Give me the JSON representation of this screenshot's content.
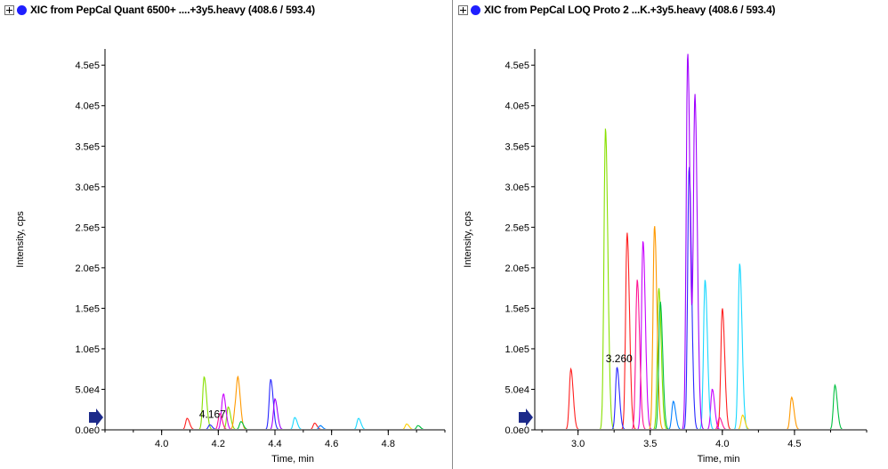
{
  "colors": {
    "series": [
      "#ff2020",
      "#88e000",
      "#2828ff",
      "#c800ff",
      "#ff9900",
      "#18d8ff",
      "#ff1493",
      "#00c040",
      "#ffd000",
      "#a000ff",
      "#0080ff"
    ],
    "marker": "#1c2a8a",
    "title_dot": "#1f1fff"
  },
  "panels": [
    {
      "title": "XIC from PepCal Quant 6500+ ....+3y5.heavy (408.6 / 593.4)",
      "expand_icon": "plus-box-icon",
      "dot_icon": "blue-circle-icon"
    },
    {
      "title": "XIC from PepCal LOQ Proto 2 ...K.+3y5.heavy (408.6 / 593.4)",
      "expand_icon": "plus-box-icon",
      "dot_icon": "blue-circle-icon"
    }
  ],
  "chart_data": [
    {
      "type": "line",
      "ylabel": "Intensity, cps",
      "xlabel": "Time, min",
      "xlim": [
        3.8,
        5.0
      ],
      "ylim": [
        0,
        470000
      ],
      "x_ticks": [
        4.0,
        4.2,
        4.4,
        4.6,
        4.8
      ],
      "x_tick_labels": [
        "4.0",
        "4.2",
        "4.4",
        "4.6",
        "4.8"
      ],
      "y_ticks": [
        0,
        50000,
        100000,
        150000,
        200000,
        250000,
        300000,
        350000,
        400000,
        450000
      ],
      "y_tick_labels": [
        "0.0e0",
        "5.0e4",
        "1.0e5",
        "1.5e5",
        "2.0e5",
        "2.5e5",
        "3.0e5",
        "3.5e5",
        "4.0e5",
        "4.5e5"
      ],
      "annotations": [
        {
          "text": "4.167",
          "x": 4.167,
          "y": 8000
        }
      ],
      "series": [
        {
          "peaks": [
            [
              4.09,
              14000
            ],
            [
              4.54,
              8000
            ]
          ]
        },
        {
          "peaks": [
            [
              4.15,
              65000
            ],
            [
              4.235,
              28000
            ]
          ]
        },
        {
          "peaks": [
            [
              4.17,
              6000
            ],
            [
              4.385,
              62000
            ]
          ]
        },
        {
          "peaks": [
            [
              4.215,
              25000
            ],
            [
              4.22,
              22000
            ]
          ]
        },
        {
          "peaks": [
            [
              4.26,
              25000
            ],
            [
              4.27,
              52000
            ]
          ]
        },
        {
          "peaks": [
            [
              4.47,
              15000
            ],
            [
              4.695,
              14000
            ]
          ]
        },
        {
          "peaks": [
            [
              4.205,
              20000
            ]
          ]
        },
        {
          "peaks": [
            [
              4.28,
              10000
            ],
            [
              4.905,
              5000
            ]
          ]
        },
        {
          "peaks": [
            [
              4.865,
              7000
            ]
          ]
        },
        {
          "peaks": [
            [
              4.4,
              38000
            ]
          ]
        },
        {
          "peaks": [
            [
              4.56,
              5000
            ]
          ]
        }
      ]
    },
    {
      "type": "line",
      "ylabel": "Intensity, cps",
      "xlabel": "Time, min",
      "xlim": [
        2.7,
        5.0
      ],
      "ylim": [
        0,
        470000
      ],
      "x_ticks": [
        3.0,
        3.5,
        4.0,
        4.5
      ],
      "x_tick_labels": [
        "3.0",
        "3.5",
        "4.0",
        "4.5"
      ],
      "y_ticks": [
        0,
        50000,
        100000,
        150000,
        200000,
        250000,
        300000,
        350000,
        400000,
        450000
      ],
      "y_tick_labels": [
        "0.0e0",
        "5.0e4",
        "1.0e5",
        "1.5e5",
        "2.0e5",
        "2.5e5",
        "3.0e5",
        "3.5e5",
        "4.0e5",
        "4.5e5"
      ],
      "annotations": [
        {
          "text": "3.260",
          "x": 3.26,
          "y": 77000
        }
      ],
      "series": [
        {
          "peaks": [
            [
              2.95,
              75000
            ],
            [
              3.34,
              243000
            ],
            [
              4.0,
              150000
            ]
          ]
        },
        {
          "peaks": [
            [
              3.19,
              372000
            ],
            [
              3.56,
              175000
            ]
          ]
        },
        {
          "peaks": [
            [
              3.27,
              77000
            ],
            [
              3.77,
              325000
            ]
          ]
        },
        {
          "peaks": [
            [
              3.45,
              233000
            ],
            [
              3.93,
              50000
            ]
          ]
        },
        {
          "peaks": [
            [
              3.53,
              252000
            ],
            [
              4.48,
              40000
            ]
          ]
        },
        {
          "peaks": [
            [
              3.88,
              185000
            ],
            [
              4.12,
              205000
            ]
          ]
        },
        {
          "peaks": [
            [
              3.41,
              185000
            ],
            [
              3.98,
              15000
            ]
          ]
        },
        {
          "peaks": [
            [
              3.57,
              158000
            ],
            [
              4.78,
              55000
            ]
          ]
        },
        {
          "peaks": [
            [
              4.14,
              18000
            ]
          ]
        },
        {
          "peaks": [
            [
              3.76,
              465000
            ],
            [
              3.81,
              410000
            ]
          ]
        },
        {
          "peaks": [
            [
              3.66,
              35000
            ]
          ]
        }
      ]
    }
  ]
}
